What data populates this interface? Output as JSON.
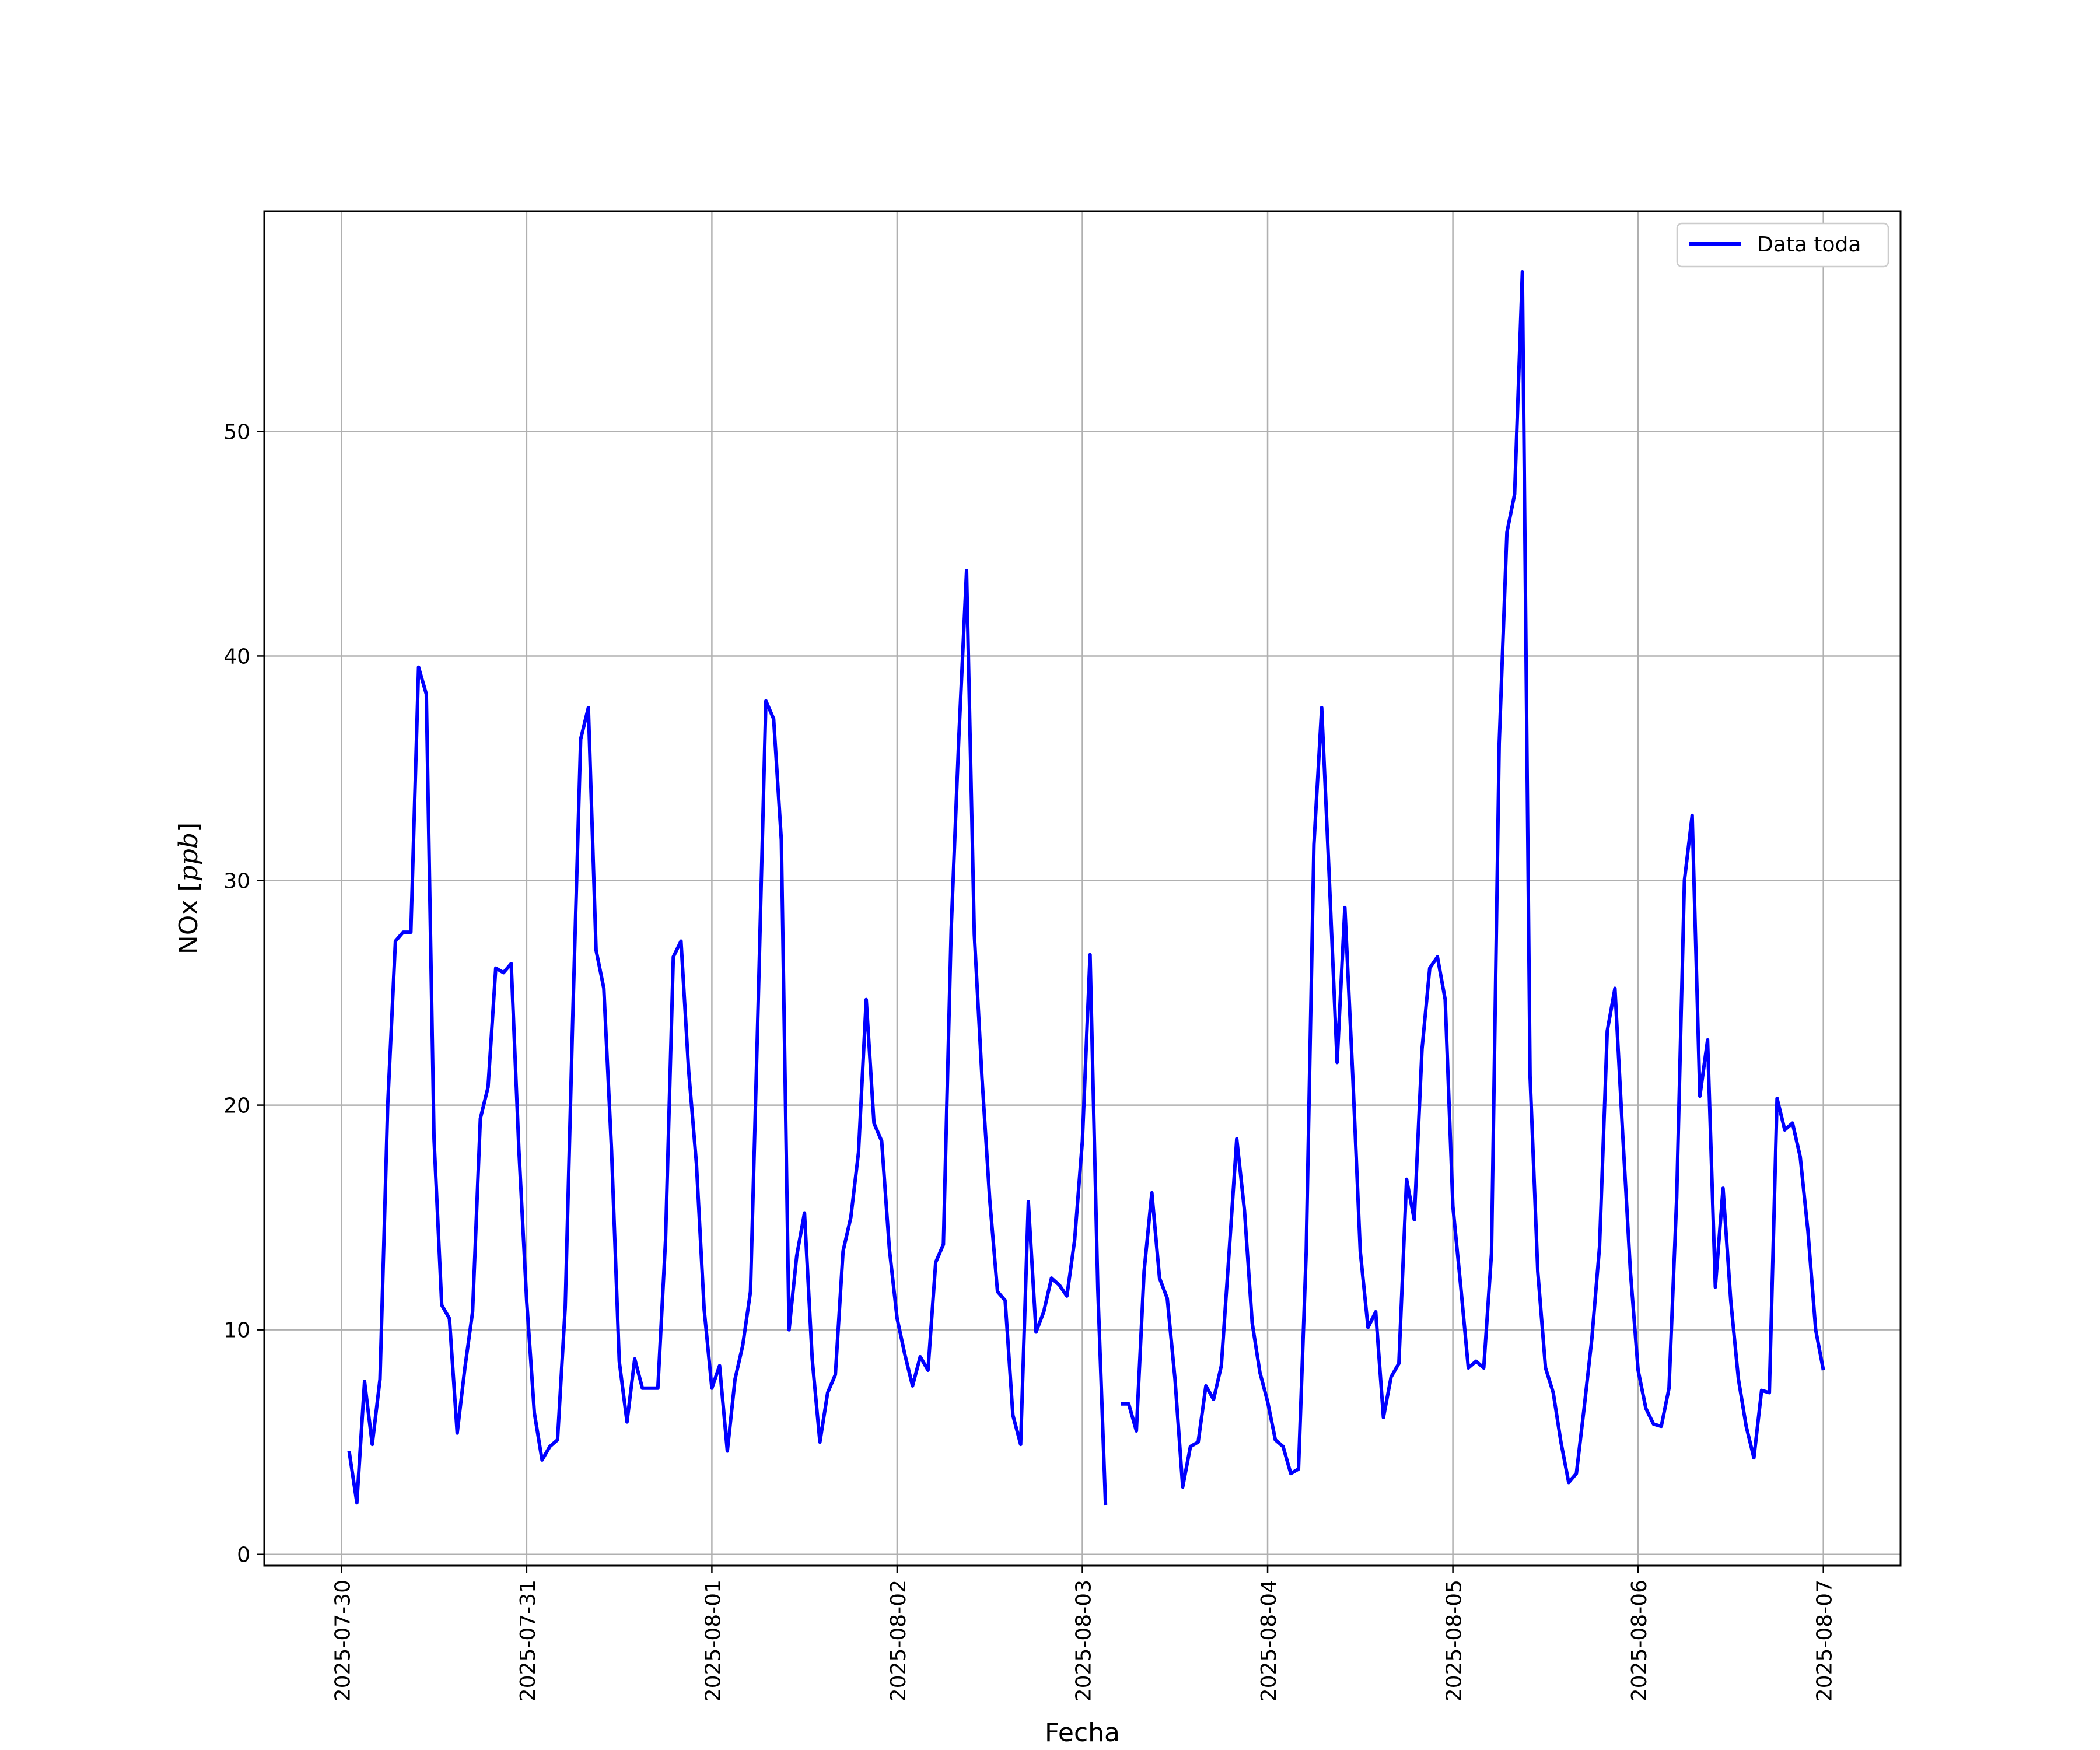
{
  "chart_data": {
    "type": "line",
    "title": "",
    "xlabel": "Fecha",
    "ylabel": "NOx",
    "ylabel_unit": "ppb",
    "x_unit": "datetime",
    "xlim": [
      "2025-07-29T14:00",
      "2025-08-07T10:00"
    ],
    "ylim": [
      -0.5,
      59.8
    ],
    "yticks": [
      0,
      10,
      20,
      30,
      40,
      50
    ],
    "xticks": [
      "2025-07-30",
      "2025-07-31",
      "2025-08-01",
      "2025-08-02",
      "2025-08-03",
      "2025-08-04",
      "2025-08-05",
      "2025-08-06",
      "2025-08-07"
    ],
    "grid": true,
    "legend_position": "top-right",
    "series": [
      {
        "name": "Data toda",
        "color": "#0000ff",
        "points": [
          [
            "2025-07-30T01:00",
            4.6
          ],
          [
            "2025-07-30T02:00",
            2.3
          ],
          [
            "2025-07-30T03:00",
            7.7
          ],
          [
            "2025-07-30T04:00",
            4.9
          ],
          [
            "2025-07-30T05:00",
            7.8
          ],
          [
            "2025-07-30T06:00",
            20.0
          ],
          [
            "2025-07-30T07:00",
            27.3
          ],
          [
            "2025-07-30T08:00",
            27.7
          ],
          [
            "2025-07-30T09:00",
            27.7
          ],
          [
            "2025-07-30T10:00",
            39.5
          ],
          [
            "2025-07-30T11:00",
            38.3
          ],
          [
            "2025-07-30T12:00",
            18.5
          ],
          [
            "2025-07-30T13:00",
            11.1
          ],
          [
            "2025-07-30T14:00",
            10.5
          ],
          [
            "2025-07-30T15:00",
            5.4
          ],
          [
            "2025-07-30T16:00",
            8.3
          ],
          [
            "2025-07-30T17:00",
            10.8
          ],
          [
            "2025-07-30T18:00",
            19.4
          ],
          [
            "2025-07-30T19:00",
            20.8
          ],
          [
            "2025-07-30T20:00",
            26.1
          ],
          [
            "2025-07-30T21:00",
            25.9
          ],
          [
            "2025-07-30T22:00",
            26.3
          ],
          [
            "2025-07-30T23:00",
            18.0
          ],
          [
            "2025-07-31T00:00",
            11.3
          ],
          [
            "2025-07-31T01:00",
            6.3
          ],
          [
            "2025-07-31T02:00",
            4.2
          ],
          [
            "2025-07-31T03:00",
            4.8
          ],
          [
            "2025-07-31T04:00",
            5.1
          ],
          [
            "2025-07-31T05:00",
            11.0
          ],
          [
            "2025-07-31T06:00",
            24.2
          ],
          [
            "2025-07-31T07:00",
            36.3
          ],
          [
            "2025-07-31T08:00",
            37.7
          ],
          [
            "2025-07-31T09:00",
            26.9
          ],
          [
            "2025-07-31T10:00",
            25.2
          ],
          [
            "2025-07-31T11:00",
            18.0
          ],
          [
            "2025-07-31T12:00",
            8.6
          ],
          [
            "2025-07-31T13:00",
            5.9
          ],
          [
            "2025-07-31T14:00",
            8.7
          ],
          [
            "2025-07-31T15:00",
            7.4
          ],
          [
            "2025-07-31T16:00",
            7.4
          ],
          [
            "2025-07-31T17:00",
            7.4
          ],
          [
            "2025-07-31T18:00",
            14.0
          ],
          [
            "2025-07-31T19:00",
            26.6
          ],
          [
            "2025-07-31T20:00",
            27.3
          ],
          [
            "2025-07-31T21:00",
            21.5
          ],
          [
            "2025-07-31T22:00",
            17.4
          ],
          [
            "2025-07-31T23:00",
            10.9
          ],
          [
            "2025-08-01T00:00",
            7.4
          ],
          [
            "2025-08-01T01:00",
            8.4
          ],
          [
            "2025-08-01T02:00",
            4.6
          ],
          [
            "2025-08-01T03:00",
            7.8
          ],
          [
            "2025-08-01T04:00",
            9.3
          ],
          [
            "2025-08-01T05:00",
            11.7
          ],
          [
            "2025-08-01T06:00",
            24.5
          ],
          [
            "2025-08-01T07:00",
            38.0
          ],
          [
            "2025-08-01T08:00",
            37.2
          ],
          [
            "2025-08-01T09:00",
            31.8
          ],
          [
            "2025-08-01T10:00",
            10.0
          ],
          [
            "2025-08-01T11:00",
            13.3
          ],
          [
            "2025-08-01T12:00",
            15.2
          ],
          [
            "2025-08-01T13:00",
            8.7
          ],
          [
            "2025-08-01T14:00",
            5.0
          ],
          [
            "2025-08-01T15:00",
            7.2
          ],
          [
            "2025-08-01T16:00",
            8.0
          ],
          [
            "2025-08-01T17:00",
            13.5
          ],
          [
            "2025-08-01T18:00",
            15.0
          ],
          [
            "2025-08-01T19:00",
            17.9
          ],
          [
            "2025-08-01T20:00",
            24.7
          ],
          [
            "2025-08-01T21:00",
            19.2
          ],
          [
            "2025-08-01T22:00",
            18.4
          ],
          [
            "2025-08-01T23:00",
            13.6
          ],
          [
            "2025-08-02T00:00",
            10.5
          ],
          [
            "2025-08-02T01:00",
            8.9
          ],
          [
            "2025-08-02T02:00",
            7.5
          ],
          [
            "2025-08-02T03:00",
            8.8
          ],
          [
            "2025-08-02T04:00",
            8.2
          ],
          [
            "2025-08-02T05:00",
            13.0
          ],
          [
            "2025-08-02T06:00",
            13.8
          ],
          [
            "2025-08-02T07:00",
            27.8
          ],
          [
            "2025-08-02T08:00",
            36.4
          ],
          [
            "2025-08-02T09:00",
            43.8
          ],
          [
            "2025-08-02T10:00",
            27.6
          ],
          [
            "2025-08-02T11:00",
            21.2
          ],
          [
            "2025-08-02T12:00",
            15.8
          ],
          [
            "2025-08-02T13:00",
            11.7
          ],
          [
            "2025-08-02T14:00",
            11.3
          ],
          [
            "2025-08-02T15:00",
            6.2
          ],
          [
            "2025-08-02T16:00",
            4.9
          ],
          [
            "2025-08-02T17:00",
            15.7
          ],
          [
            "2025-08-02T18:00",
            9.9
          ],
          [
            "2025-08-02T19:00",
            10.8
          ],
          [
            "2025-08-02T20:00",
            12.3
          ],
          [
            "2025-08-02T21:00",
            12.0
          ],
          [
            "2025-08-02T22:00",
            11.5
          ],
          [
            "2025-08-02T23:00",
            14.0
          ],
          [
            "2025-08-03T00:00",
            18.4
          ],
          [
            "2025-08-03T01:00",
            26.7
          ],
          [
            "2025-08-03T02:00",
            11.8
          ],
          [
            "2025-08-03T03:00",
            2.2
          ],
          null,
          [
            "2025-08-03T05:00",
            6.7
          ],
          [
            "2025-08-03T06:00",
            6.7
          ],
          [
            "2025-08-03T07:00",
            5.5
          ],
          [
            "2025-08-03T08:00",
            12.6
          ],
          [
            "2025-08-03T09:00",
            16.1
          ],
          [
            "2025-08-03T10:00",
            12.3
          ],
          [
            "2025-08-03T11:00",
            11.4
          ],
          [
            "2025-08-03T12:00",
            7.8
          ],
          [
            "2025-08-03T13:00",
            3.0
          ],
          [
            "2025-08-03T14:00",
            4.8
          ],
          [
            "2025-08-03T15:00",
            5.0
          ],
          [
            "2025-08-03T16:00",
            7.5
          ],
          [
            "2025-08-03T17:00",
            6.9
          ],
          [
            "2025-08-03T18:00",
            8.4
          ],
          [
            "2025-08-03T19:00",
            13.4
          ],
          [
            "2025-08-03T20:00",
            18.5
          ],
          [
            "2025-08-03T21:00",
            15.3
          ],
          [
            "2025-08-03T22:00",
            10.3
          ],
          [
            "2025-08-03T23:00",
            8.1
          ],
          [
            "2025-08-04T00:00",
            6.8
          ],
          [
            "2025-08-04T01:00",
            5.1
          ],
          [
            "2025-08-04T02:00",
            4.8
          ],
          [
            "2025-08-04T03:00",
            3.6
          ],
          [
            "2025-08-04T04:00",
            3.8
          ],
          [
            "2025-08-04T05:00",
            13.5
          ],
          [
            "2025-08-04T06:00",
            31.6
          ],
          [
            "2025-08-04T07:00",
            37.7
          ],
          [
            "2025-08-04T08:00",
            30.0
          ],
          [
            "2025-08-04T09:00",
            21.9
          ],
          [
            "2025-08-04T10:00",
            28.8
          ],
          [
            "2025-08-04T11:00",
            21.5
          ],
          [
            "2025-08-04T12:00",
            13.5
          ],
          [
            "2025-08-04T13:00",
            10.1
          ],
          [
            "2025-08-04T14:00",
            10.8
          ],
          [
            "2025-08-04T15:00",
            6.1
          ],
          [
            "2025-08-04T16:00",
            7.9
          ],
          [
            "2025-08-04T17:00",
            8.5
          ],
          [
            "2025-08-04T18:00",
            16.7
          ],
          [
            "2025-08-04T19:00",
            14.9
          ],
          [
            "2025-08-04T20:00",
            22.5
          ],
          [
            "2025-08-04T21:00",
            26.1
          ],
          [
            "2025-08-04T22:00",
            26.6
          ],
          [
            "2025-08-04T23:00",
            24.7
          ],
          [
            "2025-08-05T00:00",
            15.5
          ],
          [
            "2025-08-05T01:00",
            12.0
          ],
          [
            "2025-08-05T02:00",
            8.3
          ],
          [
            "2025-08-05T03:00",
            8.6
          ],
          [
            "2025-08-05T04:00",
            8.3
          ],
          [
            "2025-08-05T05:00",
            13.4
          ],
          [
            "2025-08-05T06:00",
            36.1
          ],
          [
            "2025-08-05T07:00",
            45.5
          ],
          [
            "2025-08-05T08:00",
            47.2
          ],
          [
            "2025-08-05T09:00",
            57.1
          ],
          [
            "2025-08-05T10:00",
            21.3
          ],
          [
            "2025-08-05T11:00",
            12.6
          ],
          [
            "2025-08-05T12:00",
            8.3
          ],
          [
            "2025-08-05T13:00",
            7.2
          ],
          [
            "2025-08-05T14:00",
            5.0
          ],
          [
            "2025-08-05T15:00",
            3.2
          ],
          [
            "2025-08-05T16:00",
            3.6
          ],
          [
            "2025-08-05T17:00",
            6.5
          ],
          [
            "2025-08-05T18:00",
            9.6
          ],
          [
            "2025-08-05T19:00",
            13.7
          ],
          [
            "2025-08-05T20:00",
            23.3
          ],
          [
            "2025-08-05T21:00",
            25.2
          ],
          [
            "2025-08-05T22:00",
            18.7
          ],
          [
            "2025-08-05T23:00",
            12.6
          ],
          [
            "2025-08-06T00:00",
            8.2
          ],
          [
            "2025-08-06T01:00",
            6.5
          ],
          [
            "2025-08-06T02:00",
            5.8
          ],
          [
            "2025-08-06T03:00",
            5.7
          ],
          [
            "2025-08-06T04:00",
            7.4
          ],
          [
            "2025-08-06T05:00",
            15.9
          ],
          [
            "2025-08-06T06:00",
            30.0
          ],
          [
            "2025-08-06T07:00",
            32.9
          ],
          [
            "2025-08-06T08:00",
            20.4
          ],
          [
            "2025-08-06T09:00",
            22.9
          ],
          [
            "2025-08-06T10:00",
            11.9
          ],
          [
            "2025-08-06T11:00",
            16.3
          ],
          [
            "2025-08-06T12:00",
            11.3
          ],
          [
            "2025-08-06T13:00",
            7.8
          ],
          [
            "2025-08-06T14:00",
            5.7
          ],
          [
            "2025-08-06T15:00",
            4.3
          ],
          [
            "2025-08-06T16:00",
            7.3
          ],
          [
            "2025-08-06T17:00",
            7.2
          ],
          [
            "2025-08-06T18:00",
            20.3
          ],
          [
            "2025-08-06T19:00",
            18.9
          ],
          [
            "2025-08-06T20:00",
            19.2
          ],
          [
            "2025-08-06T21:00",
            17.7
          ],
          [
            "2025-08-06T22:00",
            14.4
          ],
          [
            "2025-08-06T23:00",
            10.0
          ],
          [
            "2025-08-07T00:00",
            8.2
          ]
        ]
      }
    ]
  }
}
